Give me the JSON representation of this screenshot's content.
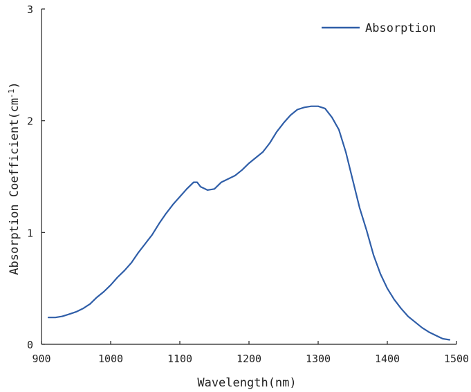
{
  "chart_data": {
    "type": "line",
    "title": "",
    "xlabel": "Wavelength(nm)",
    "ylabel_main": "Absorption Coefficient(cm",
    "ylabel_sup": "-1",
    "ylabel_close": ")",
    "xlim": [
      900,
      1500
    ],
    "ylim": [
      0,
      3
    ],
    "xticks": [
      900,
      1000,
      1100,
      1200,
      1300,
      1400,
      1500
    ],
    "yticks": [
      0,
      1,
      2,
      3
    ],
    "xtick_labels": [
      "900",
      "1000",
      "1100",
      "1200",
      "1300",
      "1400",
      "1500"
    ],
    "ytick_labels": [
      "0",
      "1",
      "2",
      "3"
    ],
    "grid": false,
    "legend_position": "top-right",
    "series": [
      {
        "name": "Absorption",
        "color": "#2f5ea8",
        "x": [
          910,
          920,
          930,
          940,
          950,
          960,
          970,
          980,
          990,
          1000,
          1010,
          1020,
          1030,
          1040,
          1050,
          1060,
          1070,
          1080,
          1090,
          1100,
          1110,
          1120,
          1125,
          1130,
          1140,
          1150,
          1160,
          1170,
          1180,
          1190,
          1200,
          1210,
          1220,
          1230,
          1240,
          1250,
          1260,
          1270,
          1280,
          1290,
          1300,
          1310,
          1320,
          1330,
          1340,
          1350,
          1360,
          1370,
          1380,
          1390,
          1400,
          1410,
          1420,
          1430,
          1440,
          1450,
          1460,
          1470,
          1480,
          1490
        ],
        "y": [
          0.24,
          0.24,
          0.25,
          0.27,
          0.29,
          0.32,
          0.36,
          0.42,
          0.47,
          0.53,
          0.6,
          0.66,
          0.73,
          0.82,
          0.9,
          0.98,
          1.08,
          1.17,
          1.25,
          1.32,
          1.39,
          1.45,
          1.45,
          1.41,
          1.38,
          1.39,
          1.45,
          1.48,
          1.51,
          1.56,
          1.62,
          1.67,
          1.72,
          1.8,
          1.9,
          1.98,
          2.05,
          2.1,
          2.12,
          2.13,
          2.13,
          2.11,
          2.03,
          1.92,
          1.72,
          1.47,
          1.22,
          1.02,
          0.8,
          0.63,
          0.5,
          0.4,
          0.32,
          0.25,
          0.2,
          0.15,
          0.11,
          0.08,
          0.05,
          0.04
        ]
      }
    ]
  }
}
